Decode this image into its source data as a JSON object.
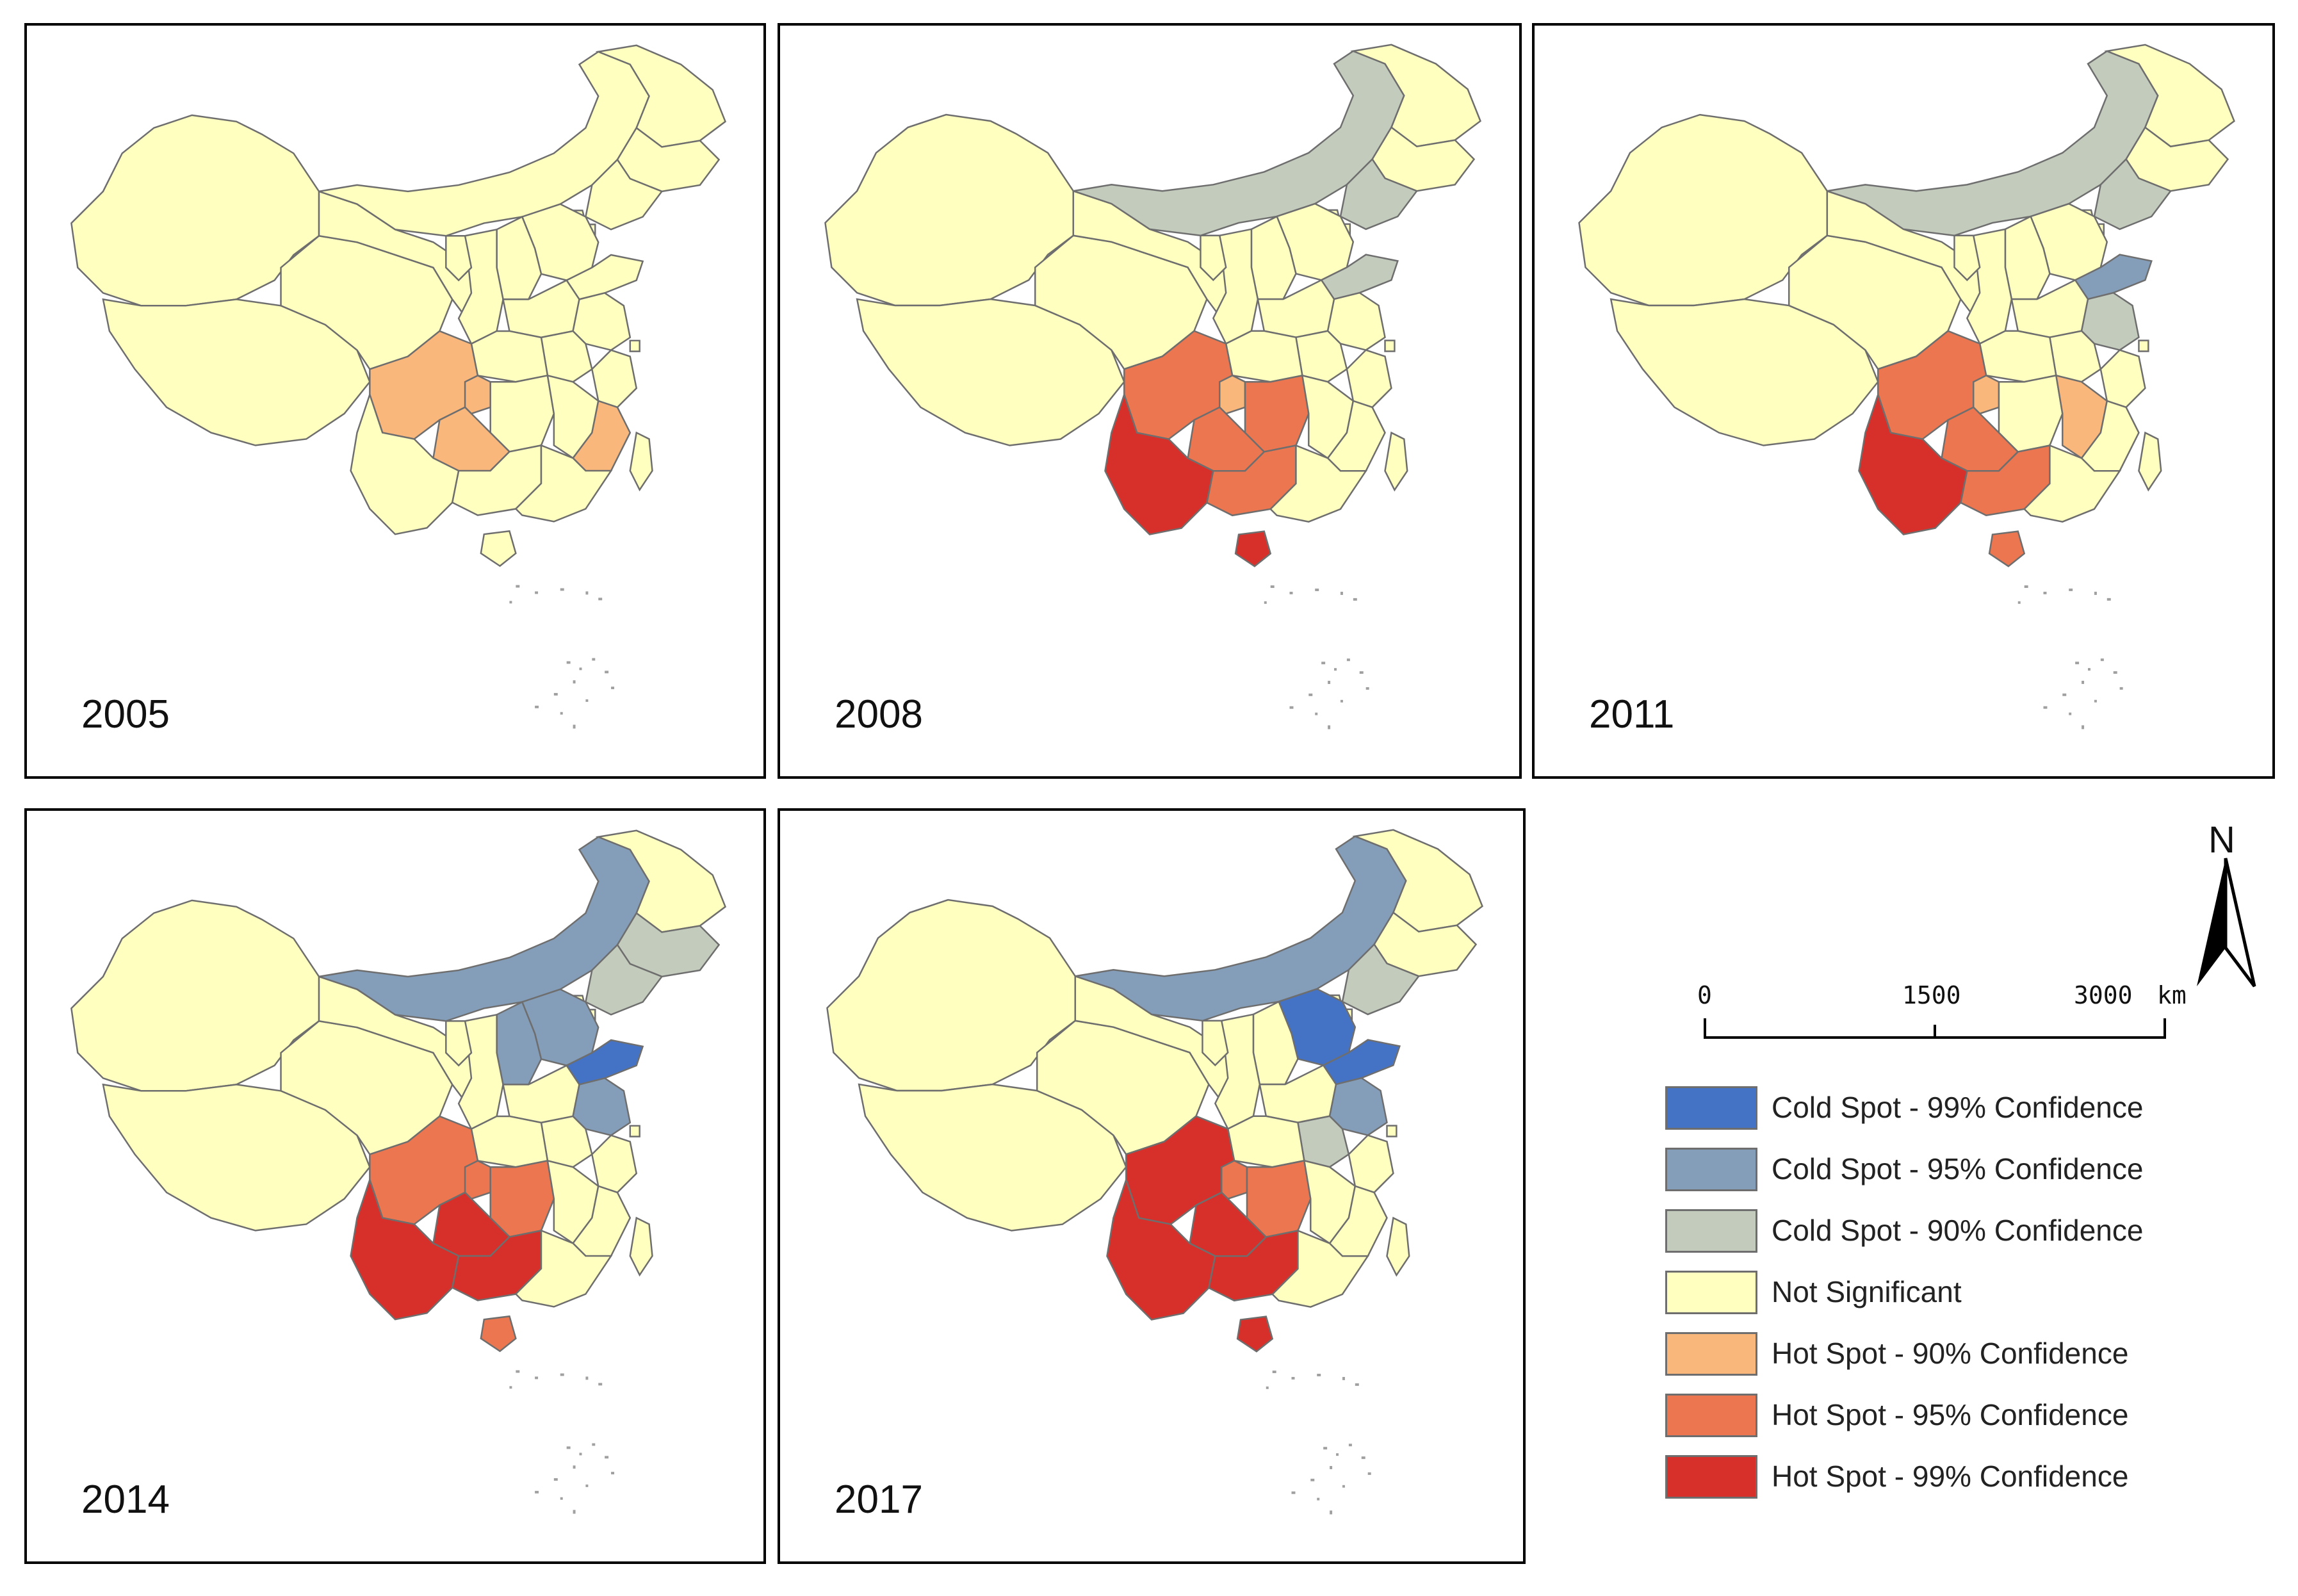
{
  "colors": {
    "cold99": "#4472c4",
    "cold95": "#849eba",
    "cold90": "#c3cbbd",
    "ns": "#ffffbf",
    "hot90": "#fab77c",
    "hot95": "#ec7650",
    "hot99": "#d7302a",
    "border": "#6e6e6e"
  },
  "maps": [
    {
      "year": "2005",
      "classes": {
        "c_sichuan": "hot90",
        "c_chongqing": "hot90",
        "c_guizhou": "hot90",
        "c_fujian": "hot90"
      }
    },
    {
      "year": "2008",
      "classes": {
        "c_innermongolia": "cold90",
        "c_liaoning": "cold90",
        "c_shandong": "cold90",
        "c_sichuan": "hot95",
        "c_chongqing": "hot90",
        "c_hunan": "hot95",
        "c_guizhou": "hot95",
        "c_guangxi": "hot95",
        "c_yunnan": "hot99",
        "c_hainan": "hot99"
      }
    },
    {
      "year": "2011",
      "classes": {
        "c_innermongolia": "cold90",
        "c_liaoning": "cold90",
        "c_shandong": "cold95",
        "c_jiangsu": "cold90",
        "c_sichuan": "hot95",
        "c_chongqing": "hot90",
        "c_jiangxi": "hot90",
        "c_guizhou": "hot95",
        "c_guangxi": "hot95",
        "c_yunnan": "hot99",
        "c_hainan": "hot95"
      }
    },
    {
      "year": "2014",
      "classes": {
        "c_innermongolia": "cold95",
        "c_liaoning": "cold90",
        "c_jilin": "cold90",
        "c_hebei": "cold95",
        "c_shanxi": "cold95",
        "c_shandong": "cold99",
        "c_jiangsu": "cold95",
        "c_sichuan": "hot95",
        "c_chongqing": "hot95",
        "c_hunan": "hot95",
        "c_guizhou": "hot99",
        "c_guangxi": "hot99",
        "c_yunnan": "hot99",
        "c_hainan": "hot95"
      }
    },
    {
      "year": "2017",
      "classes": {
        "c_innermongolia": "cold95",
        "c_liaoning": "cold90",
        "c_hebei": "cold99",
        "c_shandong": "cold99",
        "c_jiangsu": "cold95",
        "c_anhui": "cold90",
        "c_sichuan": "hot99",
        "c_chongqing": "hot95",
        "c_hunan": "hot95",
        "c_guizhou": "hot99",
        "c_guangxi": "hot99",
        "c_yunnan": "hot99",
        "c_hainan": "hot99"
      }
    }
  ],
  "north_label": "N",
  "scale": {
    "ticks": [
      "0",
      "1500",
      "3000"
    ],
    "unit": "km"
  },
  "legend": [
    {
      "label": "Cold Spot - 99% Confidence",
      "class": "cold99"
    },
    {
      "label": "Cold Spot - 95% Confidence",
      "class": "cold95"
    },
    {
      "label": "Cold Spot - 90% Confidence",
      "class": "cold90"
    },
    {
      "label": "Not Significant",
      "class": "ns"
    },
    {
      "label": "Hot Spot - 90% Confidence",
      "class": "hot90"
    },
    {
      "label": "Hot Spot - 95% Confidence",
      "class": "hot95"
    },
    {
      "label": "Hot Spot - 99% Confidence",
      "class": "hot99"
    }
  ]
}
